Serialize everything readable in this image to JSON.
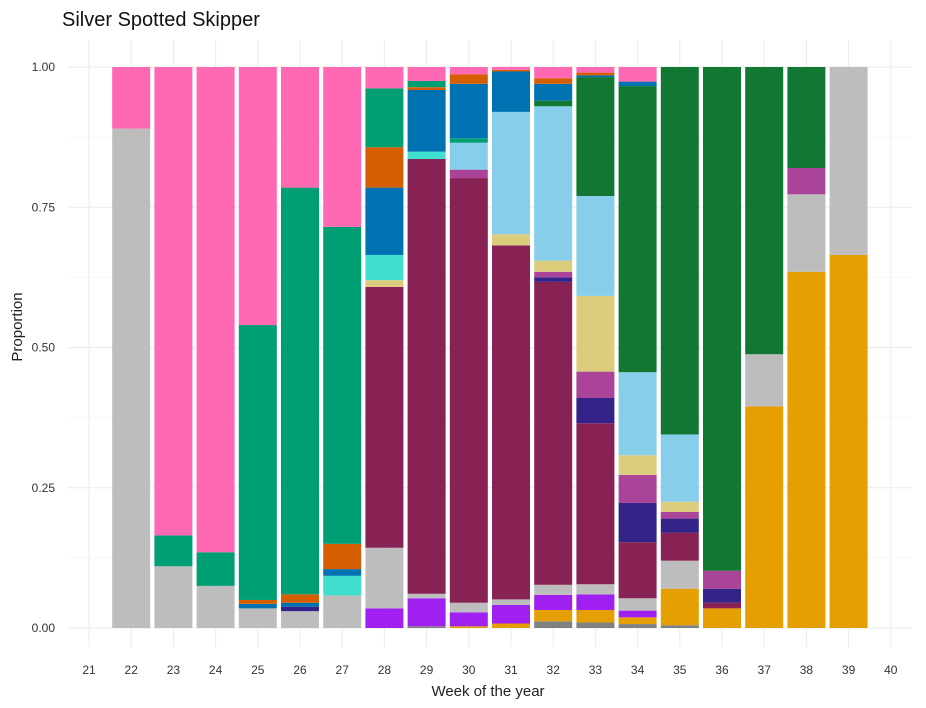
{
  "chart_data": {
    "type": "bar",
    "stacked": true,
    "title": "Silver Spotted Skipper",
    "xlabel": "Week of the year",
    "ylabel": "Proportion",
    "x_ticks": [
      "21",
      "22",
      "23",
      "24",
      "25",
      "26",
      "27",
      "28",
      "29",
      "30",
      "31",
      "32",
      "33",
      "34",
      "35",
      "36",
      "37",
      "38",
      "39",
      "40"
    ],
    "y_ticks": [
      "0.00",
      "0.25",
      "0.50",
      "0.75",
      "1.00"
    ],
    "xlim": [
      21,
      40
    ],
    "ylim": [
      0,
      1
    ],
    "grid": true,
    "legend": "none",
    "colors": {
      "grey": "#bdbdbd",
      "pink": "#ff69b4",
      "teal": "#009e73",
      "maroon": "#882255",
      "blue": "#0072b2",
      "lightblue": "#87ceeb",
      "darkgreen": "#117733",
      "orange": "#e69f00",
      "darkorange": "#d55e00",
      "purple": "#a020f0",
      "cyan": "#40e0d0",
      "tan": "#dccd7d",
      "mauve": "#aa4499",
      "navy": "#332288",
      "darkgrey": "#808080"
    },
    "bars": [
      {
        "week": 22,
        "segments": [
          [
            "grey",
            0.89
          ],
          [
            "pink",
            0.11
          ]
        ]
      },
      {
        "week": 23,
        "segments": [
          [
            "grey",
            0.11
          ],
          [
            "teal",
            0.055
          ],
          [
            "pink",
            0.835
          ]
        ]
      },
      {
        "week": 24,
        "segments": [
          [
            "grey",
            0.075
          ],
          [
            "teal",
            0.06
          ],
          [
            "pink",
            0.865
          ]
        ]
      },
      {
        "week": 25,
        "segments": [
          [
            "grey",
            0.035
          ],
          [
            "blue",
            0.008
          ],
          [
            "darkorange",
            0.007
          ],
          [
            "teal",
            0.49
          ],
          [
            "pink",
            0.46
          ]
        ]
      },
      {
        "week": 26,
        "segments": [
          [
            "grey",
            0.03
          ],
          [
            "navy",
            0.008
          ],
          [
            "blue",
            0.007
          ],
          [
            "darkorange",
            0.015
          ],
          [
            "teal",
            0.725
          ],
          [
            "pink",
            0.215
          ]
        ]
      },
      {
        "week": 27,
        "segments": [
          [
            "grey",
            0.058
          ],
          [
            "cyan",
            0.035
          ],
          [
            "blue",
            0.012
          ],
          [
            "darkorange",
            0.045
          ],
          [
            "teal",
            0.565
          ],
          [
            "pink",
            0.285
          ]
        ]
      },
      {
        "week": 28,
        "segments": [
          [
            "purple",
            0.035
          ],
          [
            "grey",
            0.108
          ],
          [
            "maroon",
            0.465
          ],
          [
            "tan",
            0.012
          ],
          [
            "cyan",
            0.045
          ],
          [
            "blue",
            0.12
          ],
          [
            "darkorange",
            0.072
          ],
          [
            "teal",
            0.105
          ],
          [
            "pink",
            0.038
          ]
        ]
      },
      {
        "week": 29,
        "segments": [
          [
            "darkgrey",
            0.003
          ],
          [
            "purple",
            0.05
          ],
          [
            "grey",
            0.008
          ],
          [
            "maroon",
            0.775
          ],
          [
            "cyan",
            0.013
          ],
          [
            "blue",
            0.11
          ],
          [
            "darkorange",
            0.005
          ],
          [
            "teal",
            0.011
          ],
          [
            "pink",
            0.025
          ]
        ]
      },
      {
        "week": 30,
        "segments": [
          [
            "orange",
            0.003
          ],
          [
            "purple",
            0.025
          ],
          [
            "grey",
            0.017
          ],
          [
            "maroon",
            0.757
          ],
          [
            "mauve",
            0.015
          ],
          [
            "lightblue",
            0.048
          ],
          [
            "teal",
            0.008
          ],
          [
            "blue",
            0.097
          ],
          [
            "darkorange",
            0.017
          ],
          [
            "pink",
            0.013
          ]
        ]
      },
      {
        "week": 31,
        "segments": [
          [
            "orange",
            0.008
          ],
          [
            "purple",
            0.033
          ],
          [
            "grey",
            0.01
          ],
          [
            "maroon",
            0.631
          ],
          [
            "tan",
            0.02
          ],
          [
            "lightblue",
            0.218
          ],
          [
            "blue",
            0.072
          ],
          [
            "darkorange",
            0.003
          ],
          [
            "pink",
            0.005
          ]
        ]
      },
      {
        "week": 32,
        "segments": [
          [
            "darkgrey",
            0.012
          ],
          [
            "orange",
            0.02
          ],
          [
            "purple",
            0.027
          ],
          [
            "grey",
            0.018
          ],
          [
            "maroon",
            0.54
          ],
          [
            "navy",
            0.008
          ],
          [
            "mauve",
            0.01
          ],
          [
            "tan",
            0.02
          ],
          [
            "lightblue",
            0.275
          ],
          [
            "darkgreen",
            0.01
          ],
          [
            "blue",
            0.03
          ],
          [
            "darkorange",
            0.01
          ],
          [
            "pink",
            0.02
          ]
        ]
      },
      {
        "week": 33,
        "segments": [
          [
            "darkgrey",
            0.01
          ],
          [
            "orange",
            0.022
          ],
          [
            "purple",
            0.028
          ],
          [
            "grey",
            0.018
          ],
          [
            "maroon",
            0.287
          ],
          [
            "navy",
            0.045
          ],
          [
            "mauve",
            0.047
          ],
          [
            "tan",
            0.135
          ],
          [
            "lightblue",
            0.178
          ],
          [
            "darkgreen",
            0.212
          ],
          [
            "blue",
            0.003
          ],
          [
            "darkorange",
            0.005
          ],
          [
            "pink",
            0.01
          ]
        ]
      },
      {
        "week": 34,
        "segments": [
          [
            "darkgrey",
            0.007
          ],
          [
            "orange",
            0.012
          ],
          [
            "purple",
            0.012
          ],
          [
            "grey",
            0.022
          ],
          [
            "maroon",
            0.1
          ],
          [
            "navy",
            0.07
          ],
          [
            "mauve",
            0.05
          ],
          [
            "tan",
            0.035
          ],
          [
            "lightblue",
            0.148
          ],
          [
            "darkgreen",
            0.51
          ],
          [
            "blue",
            0.008
          ],
          [
            "pink",
            0.026
          ]
        ]
      },
      {
        "week": 35,
        "segments": [
          [
            "darkgrey",
            0.005
          ],
          [
            "orange",
            0.065
          ],
          [
            "grey",
            0.05
          ],
          [
            "maroon",
            0.05
          ],
          [
            "navy",
            0.025
          ],
          [
            "mauve",
            0.012
          ],
          [
            "tan",
            0.018
          ],
          [
            "lightblue",
            0.12
          ],
          [
            "darkgreen",
            0.655
          ]
        ]
      },
      {
        "week": 36,
        "segments": [
          [
            "orange",
            0.035
          ],
          [
            "maroon",
            0.01
          ],
          [
            "navy",
            0.025
          ],
          [
            "mauve",
            0.032
          ],
          [
            "darkgreen",
            0.898
          ]
        ]
      },
      {
        "week": 37,
        "segments": [
          [
            "orange",
            0.395
          ],
          [
            "grey",
            0.093
          ],
          [
            "darkgreen",
            0.512
          ]
        ]
      },
      {
        "week": 38,
        "segments": [
          [
            "orange",
            0.635
          ],
          [
            "grey",
            0.138
          ],
          [
            "mauve",
            0.047
          ],
          [
            "darkgreen",
            0.18
          ]
        ]
      },
      {
        "week": 39,
        "segments": [
          [
            "orange",
            0.665
          ],
          [
            "grey",
            0.335
          ]
        ]
      }
    ]
  }
}
